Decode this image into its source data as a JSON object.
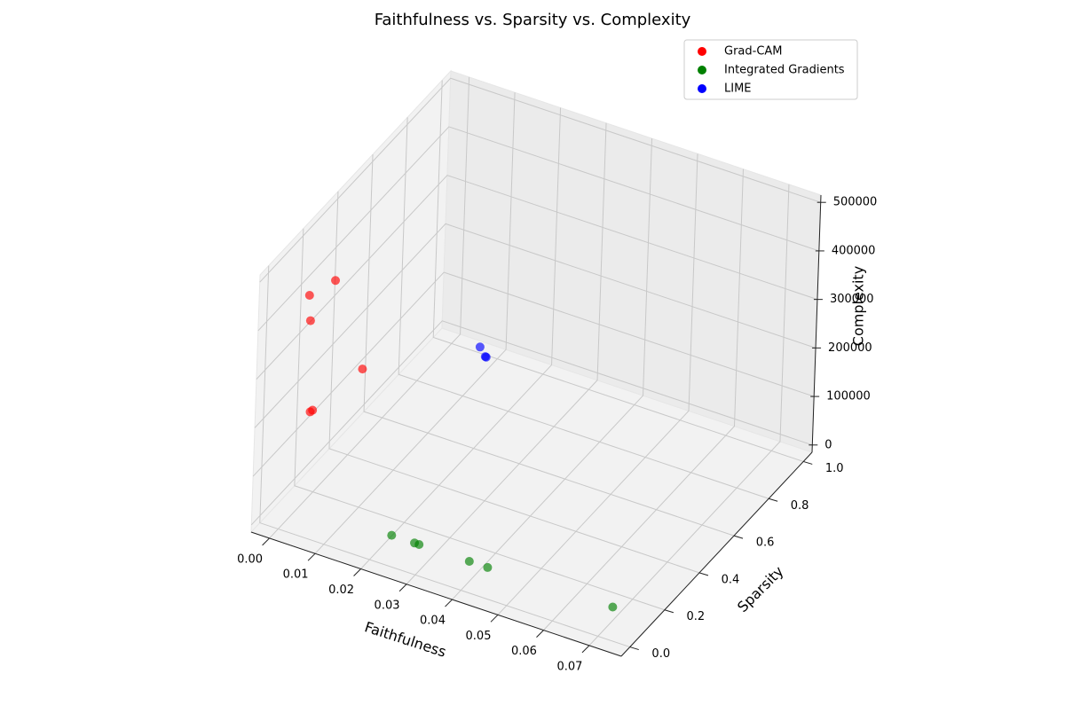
{
  "chart_data": {
    "type": "scatter3d",
    "title": "Faithfulness vs. Sparsity vs. Complexity",
    "x_label": "Faithfulness",
    "y_label": "Sparsity",
    "z_label": "Complexity",
    "xlim": [
      -0.004,
      0.077
    ],
    "ylim": [
      -0.05,
      1.05
    ],
    "zlim": [
      -15000,
      515000
    ],
    "xticks": [
      {
        "value": 0,
        "label": "0.00"
      },
      0.01,
      {
        "value": 0.02,
        "label": "0.02"
      },
      0.03,
      0.04,
      0.05,
      0.06,
      0.07
    ],
    "yticks": [
      {
        "value": 0,
        "label": "0.0"
      },
      0.2,
      0.4,
      0.6,
      0.8,
      {
        "value": 1,
        "label": "1.0"
      }
    ],
    "zticks": [
      0,
      100000,
      200000,
      300000,
      400000,
      500000
    ],
    "legend": "upper right",
    "series": [
      {
        "name": "Grad-CAM",
        "color": "#ff0000",
        "x": [
          0.0055,
          0.0,
          0.0004,
          0.012,
          0.0015,
          0.001
        ],
        "y": [
          0.14,
          0.14,
          0.14,
          0.14,
          0.14,
          0.14
        ],
        "z": [
          461000,
          413000,
          362000,
          299000,
          181000,
          176000
        ]
      },
      {
        "name": "Integrated Gradients",
        "color": "#008000",
        "x": [
          0.069,
          0.042,
          0.038,
          0.027,
          0.026,
          0.021
        ],
        "y": [
          0.11,
          0.1,
          0.1,
          0.1,
          0.1,
          0.1
        ],
        "z": [
          0,
          0,
          0,
          0,
          0,
          0
        ]
      },
      {
        "name": "LIME",
        "color": "#0000ff",
        "x": [
          0.0098,
          0.011,
          0.0112
        ],
        "y": [
          0.9,
          0.9,
          0.9
        ],
        "z": [
          47000,
          31000,
          30500
        ]
      }
    ]
  }
}
